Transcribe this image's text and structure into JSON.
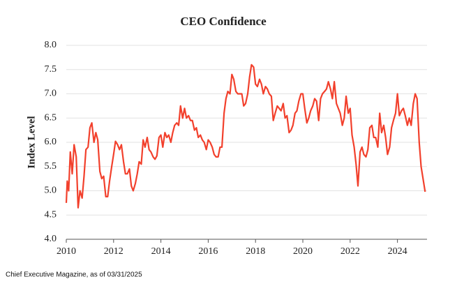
{
  "chart_data": {
    "type": "line",
    "title": "CEO Confidence",
    "y_label": "Index Level",
    "source": "Chief Executive Magazine, as of 03/31/2025",
    "grid": true,
    "color": "#f2402c",
    "xlim": [
      2010,
      2025.25
    ],
    "xticks": [
      2010,
      2012,
      2014,
      2016,
      2018,
      2020,
      2022,
      2024
    ],
    "ylim": [
      4,
      8
    ],
    "yticks": [
      {
        "value": 4,
        "label": "4.0"
      },
      {
        "value": 4.5,
        "label": "4.5"
      },
      {
        "value": 5,
        "label": "5.0"
      },
      {
        "value": 5.5,
        "label": "5.5"
      },
      {
        "value": 6,
        "label": "6.0"
      },
      {
        "value": 6.5,
        "label": "6.5"
      },
      {
        "value": 7,
        "label": "7.0"
      },
      {
        "value": 7.5,
        "label": "7.5"
      },
      {
        "value": 8,
        "label": "8.0"
      }
    ],
    "x": [
      2010.0,
      2010.04,
      2010.1,
      2010.17,
      2010.25,
      2010.33,
      2010.42,
      2010.5,
      2010.58,
      2010.67,
      2010.75,
      2010.83,
      2010.92,
      2011.0,
      2011.08,
      2011.17,
      2011.25,
      2011.33,
      2011.42,
      2011.5,
      2011.58,
      2011.67,
      2011.75,
      2011.83,
      2011.92,
      2012.0,
      2012.08,
      2012.17,
      2012.25,
      2012.33,
      2012.42,
      2012.5,
      2012.58,
      2012.67,
      2012.75,
      2012.83,
      2012.92,
      2013.0,
      2013.08,
      2013.17,
      2013.25,
      2013.33,
      2013.42,
      2013.5,
      2013.58,
      2013.67,
      2013.75,
      2013.83,
      2013.92,
      2014.0,
      2014.08,
      2014.17,
      2014.25,
      2014.33,
      2014.42,
      2014.5,
      2014.58,
      2014.67,
      2014.75,
      2014.83,
      2014.92,
      2015.0,
      2015.08,
      2015.17,
      2015.25,
      2015.33,
      2015.42,
      2015.5,
      2015.58,
      2015.67,
      2015.75,
      2015.83,
      2015.92,
      2016.0,
      2016.08,
      2016.17,
      2016.25,
      2016.33,
      2016.42,
      2016.5,
      2016.58,
      2016.67,
      2016.75,
      2016.83,
      2016.92,
      2017.0,
      2017.08,
      2017.17,
      2017.25,
      2017.33,
      2017.42,
      2017.5,
      2017.58,
      2017.67,
      2017.75,
      2017.83,
      2017.92,
      2018.0,
      2018.08,
      2018.17,
      2018.25,
      2018.33,
      2018.42,
      2018.5,
      2018.58,
      2018.67,
      2018.75,
      2018.83,
      2018.92,
      2019.0,
      2019.08,
      2019.17,
      2019.25,
      2019.33,
      2019.42,
      2019.5,
      2019.58,
      2019.67,
      2019.75,
      2019.83,
      2019.92,
      2020.0,
      2020.08,
      2020.17,
      2020.25,
      2020.33,
      2020.42,
      2020.5,
      2020.58,
      2020.67,
      2020.75,
      2020.83,
      2020.92,
      2021.0,
      2021.08,
      2021.17,
      2021.25,
      2021.33,
      2021.42,
      2021.5,
      2021.58,
      2021.67,
      2021.75,
      2021.83,
      2021.92,
      2022.0,
      2022.08,
      2022.17,
      2022.25,
      2022.33,
      2022.42,
      2022.5,
      2022.58,
      2022.67,
      2022.75,
      2022.83,
      2022.92,
      2023.0,
      2023.08,
      2023.17,
      2023.25,
      2023.33,
      2023.42,
      2023.5,
      2023.58,
      2023.67,
      2023.75,
      2023.83,
      2023.92,
      2024.0,
      2024.08,
      2024.17,
      2024.25,
      2024.33,
      2024.42,
      2024.5,
      2024.58,
      2024.67,
      2024.75,
      2024.83,
      2024.92,
      2025.0,
      2025.17
    ],
    "series": [
      {
        "name": "CEO Confidence",
        "color": "#f2402c",
        "values": [
          4.75,
          5.2,
          5.0,
          5.8,
          5.35,
          5.95,
          5.7,
          4.65,
          5.0,
          4.85,
          5.3,
          5.85,
          5.9,
          6.3,
          6.4,
          6.0,
          6.2,
          6.05,
          5.4,
          5.25,
          5.3,
          4.88,
          4.88,
          5.2,
          5.5,
          5.75,
          6.02,
          5.95,
          5.85,
          5.95,
          5.6,
          5.35,
          5.35,
          5.45,
          5.1,
          5.0,
          5.15,
          5.35,
          5.6,
          5.55,
          6.05,
          5.9,
          6.1,
          5.85,
          5.8,
          5.7,
          5.65,
          5.72,
          6.1,
          6.15,
          5.9,
          6.2,
          6.1,
          6.15,
          6.0,
          6.2,
          6.35,
          6.4,
          6.35,
          6.75,
          6.5,
          6.7,
          6.5,
          6.55,
          6.45,
          6.45,
          6.25,
          6.3,
          6.1,
          6.15,
          6.05,
          6.0,
          5.85,
          6.05,
          6.0,
          5.9,
          5.75,
          5.7,
          5.7,
          5.9,
          5.9,
          6.6,
          6.9,
          7.05,
          7.0,
          7.4,
          7.3,
          7.05,
          7.0,
          7.0,
          7.0,
          6.75,
          6.8,
          7.0,
          7.35,
          7.6,
          7.55,
          7.2,
          7.15,
          7.3,
          7.2,
          7.0,
          7.15,
          7.1,
          7.0,
          6.95,
          6.45,
          6.6,
          6.75,
          6.7,
          6.65,
          6.8,
          6.5,
          6.55,
          6.2,
          6.25,
          6.35,
          6.6,
          6.65,
          6.85,
          7.0,
          7.0,
          6.7,
          6.4,
          6.5,
          6.65,
          6.75,
          6.9,
          6.85,
          6.45,
          6.9,
          7.0,
          7.05,
          7.1,
          7.25,
          7.1,
          6.9,
          7.25,
          6.8,
          6.7,
          6.6,
          6.35,
          6.5,
          6.95,
          6.6,
          6.7,
          6.15,
          5.9,
          5.55,
          5.1,
          5.8,
          5.9,
          5.75,
          5.7,
          5.85,
          6.3,
          6.35,
          6.1,
          6.1,
          5.9,
          6.6,
          6.2,
          6.35,
          6.1,
          5.75,
          5.9,
          6.3,
          6.45,
          6.6,
          7.0,
          6.55,
          6.65,
          6.7,
          6.55,
          6.35,
          6.5,
          6.35,
          6.8,
          7.0,
          6.9,
          6.0,
          5.5,
          4.98
        ]
      }
    ]
  }
}
